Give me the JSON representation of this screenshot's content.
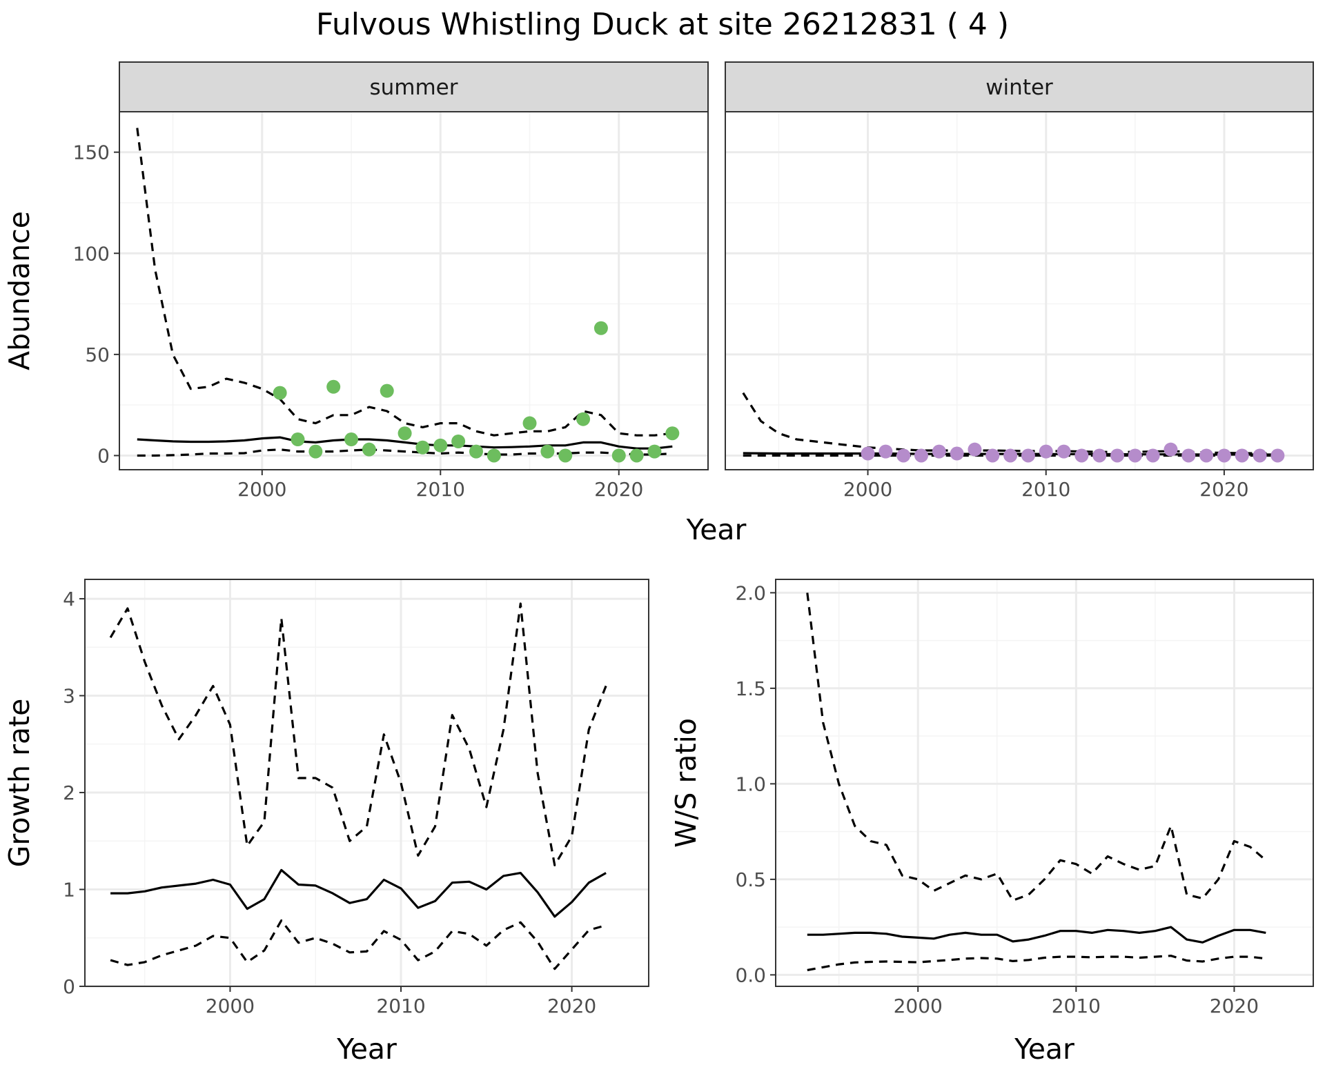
{
  "title": "Fulvous Whistling Duck at site 26212831 ( 4 )",
  "colors": {
    "summer_points": "#6dbd5e",
    "winter_points": "#b58ccb",
    "line": "#000000",
    "grid_major": "#ebebeb",
    "grid_minor": "#f4f4f4",
    "strip_fill": "#d9d9d9"
  },
  "chart_data": [
    {
      "type": "line",
      "panel": "summer",
      "xlabel": "Year",
      "ylabel": "Abundance",
      "xlim": [
        1992,
        2025
      ],
      "ylim": [
        -7,
        170
      ],
      "xticks": [
        2000,
        2010,
        2020
      ],
      "yticks": [
        0,
        50,
        100,
        150
      ],
      "grid": true,
      "series": [
        {
          "role": "median",
          "style": "solid",
          "x": [
            1993,
            1994,
            1995,
            1996,
            1997,
            1998,
            1999,
            2000,
            2001,
            2002,
            2003,
            2004,
            2005,
            2006,
            2007,
            2008,
            2009,
            2010,
            2011,
            2012,
            2013,
            2014,
            2015,
            2016,
            2017,
            2018,
            2019,
            2020,
            2021,
            2022,
            2023
          ],
          "y": [
            8,
            7.5,
            7,
            6.8,
            6.8,
            7,
            7.5,
            8.5,
            9,
            7,
            6.5,
            7.5,
            8,
            8,
            7.5,
            6.5,
            5.5,
            5,
            5,
            4.5,
            4,
            4.2,
            4.5,
            5,
            5,
            6.5,
            6.5,
            4.5,
            3.5,
            3.5,
            4.5
          ]
        },
        {
          "role": "upper",
          "style": "dashed",
          "x": [
            1993,
            1994,
            1995,
            1996,
            1997,
            1998,
            1999,
            2000,
            2001,
            2002,
            2003,
            2004,
            2005,
            2006,
            2007,
            2008,
            2009,
            2010,
            2011,
            2012,
            2013,
            2014,
            2015,
            2016,
            2017,
            2018,
            2019,
            2020,
            2021,
            2022,
            2023
          ],
          "y": [
            162,
            92,
            50,
            33,
            34,
            38,
            36,
            33,
            28,
            18,
            16,
            20,
            20,
            24,
            22,
            16,
            14,
            16,
            16,
            12,
            10,
            11,
            12,
            12,
            14,
            22,
            20,
            11,
            10,
            10,
            11
          ]
        },
        {
          "role": "lower",
          "style": "dashed",
          "x": [
            1993,
            1994,
            1995,
            1996,
            1997,
            1998,
            1999,
            2000,
            2001,
            2002,
            2003,
            2004,
            2005,
            2006,
            2007,
            2008,
            2009,
            2010,
            2011,
            2012,
            2013,
            2014,
            2015,
            2016,
            2017,
            2018,
            2019,
            2020,
            2021,
            2022,
            2023
          ],
          "y": [
            0,
            0,
            0.2,
            0.5,
            1,
            1,
            1.2,
            2.5,
            3,
            2,
            2,
            2,
            2.5,
            3,
            2.5,
            2,
            1.5,
            1,
            1.5,
            1,
            0.5,
            0.5,
            1,
            1,
            1,
            1.5,
            1.5,
            1,
            0.5,
            0.5,
            1
          ]
        }
      ],
      "observed": {
        "x": [
          2001,
          2002,
          2003,
          2004,
          2005,
          2006,
          2007,
          2008,
          2009,
          2010,
          2011,
          2012,
          2013,
          2015,
          2016,
          2017,
          2018,
          2019,
          2020,
          2021,
          2022,
          2023
        ],
        "y": [
          31,
          8,
          2,
          34,
          8,
          3,
          32,
          11,
          4,
          5,
          7,
          2,
          0,
          16,
          2,
          0,
          18,
          63,
          0,
          0,
          2,
          11
        ]
      }
    },
    {
      "type": "line",
      "panel": "winter",
      "xlabel": "Year",
      "ylabel": "Abundance",
      "xlim": [
        1992,
        2025
      ],
      "ylim": [
        -7,
        170
      ],
      "xticks": [
        2000,
        2010,
        2020
      ],
      "yticks": [
        0,
        50,
        100,
        150
      ],
      "grid": true,
      "series": [
        {
          "role": "median",
          "style": "solid",
          "x": [
            1993,
            1995,
            1997,
            1999,
            2001,
            2003,
            2005,
            2007,
            2009,
            2011,
            2013,
            2015,
            2017,
            2019,
            2021,
            2023
          ],
          "y": [
            1.2,
            1,
            1,
            1,
            1,
            0.8,
            0.8,
            0.8,
            0.8,
            0.7,
            0.7,
            0.6,
            0.6,
            0.5,
            0.5,
            0.5
          ]
        },
        {
          "role": "upper",
          "style": "dashed",
          "x": [
            1993,
            1994,
            1995,
            1996,
            1997,
            1998,
            1999,
            2000,
            2001,
            2002,
            2003,
            2005,
            2007,
            2009,
            2011,
            2013,
            2015,
            2017,
            2019,
            2021,
            2023
          ],
          "y": [
            31,
            17,
            11,
            8,
            7,
            6,
            5,
            4,
            3.5,
            3,
            2.5,
            2.5,
            2.5,
            2.2,
            2.2,
            1.8,
            1.8,
            2.2,
            1.5,
            1.2,
            1
          ]
        },
        {
          "role": "lower",
          "style": "dashed",
          "x": [
            1993,
            1995,
            1997,
            1999,
            2001,
            2003,
            2005,
            2007,
            2009,
            2011,
            2013,
            2015,
            2017,
            2019,
            2021,
            2023
          ],
          "y": [
            0,
            0,
            0,
            0,
            0,
            0,
            0,
            0,
            0,
            0,
            0,
            0,
            0,
            0,
            0,
            0
          ]
        }
      ],
      "observed": {
        "x": [
          2000,
          2001,
          2002,
          2003,
          2004,
          2005,
          2006,
          2007,
          2008,
          2009,
          2010,
          2011,
          2012,
          2013,
          2014,
          2015,
          2016,
          2017,
          2018,
          2019,
          2020,
          2021,
          2022,
          2023
        ],
        "y": [
          1,
          2,
          0,
          0,
          2,
          1,
          3,
          0,
          0,
          0,
          2,
          2,
          0,
          0,
          0,
          0,
          0,
          3,
          0,
          0,
          0,
          0,
          0,
          0
        ]
      }
    },
    {
      "type": "line",
      "xlabel": "Year",
      "ylabel": "Growth rate",
      "xlim": [
        1991.5,
        2024.5
      ],
      "ylim": [
        0,
        4.2
      ],
      "xticks": [
        2000,
        2010,
        2020
      ],
      "yticks": [
        0,
        1,
        2,
        3,
        4
      ],
      "grid": true,
      "series": [
        {
          "role": "median",
          "style": "solid",
          "x": [
            1993,
            1994,
            1995,
            1996,
            1997,
            1998,
            1999,
            2000,
            2001,
            2002,
            2003,
            2004,
            2005,
            2006,
            2007,
            2008,
            2009,
            2010,
            2011,
            2012,
            2013,
            2014,
            2015,
            2016,
            2017,
            2018,
            2019,
            2020,
            2021,
            2022
          ],
          "y": [
            0.96,
            0.96,
            0.98,
            1.02,
            1.04,
            1.06,
            1.1,
            1.05,
            0.8,
            0.9,
            1.2,
            1.05,
            1.04,
            0.96,
            0.86,
            0.9,
            1.1,
            1.01,
            0.81,
            0.88,
            1.07,
            1.08,
            1.0,
            1.14,
            1.17,
            0.97,
            0.72,
            0.87,
            1.07,
            1.17
          ]
        },
        {
          "role": "upper",
          "style": "dashed",
          "x": [
            1993,
            1994,
            1995,
            1996,
            1997,
            1998,
            1999,
            2000,
            2001,
            2002,
            2003,
            2004,
            2005,
            2006,
            2007,
            2008,
            2009,
            2010,
            2011,
            2012,
            2013,
            2014,
            2015,
            2016,
            2017,
            2018,
            2019,
            2020,
            2021,
            2022
          ],
          "y": [
            3.6,
            3.9,
            3.35,
            2.9,
            2.55,
            2.8,
            3.1,
            2.7,
            1.45,
            1.7,
            3.8,
            2.15,
            2.15,
            2.05,
            1.5,
            1.65,
            2.6,
            2.1,
            1.35,
            1.65,
            2.8,
            2.45,
            1.85,
            2.65,
            3.95,
            2.2,
            1.25,
            1.55,
            2.65,
            3.1
          ]
        },
        {
          "role": "lower",
          "style": "dashed",
          "x": [
            1993,
            1994,
            1995,
            1996,
            1997,
            1998,
            1999,
            2000,
            2001,
            2002,
            2003,
            2004,
            2005,
            2006,
            2007,
            2008,
            2009,
            2010,
            2011,
            2012,
            2013,
            2014,
            2015,
            2016,
            2017,
            2018,
            2019,
            2020,
            2021,
            2022
          ],
          "y": [
            0.27,
            0.22,
            0.25,
            0.32,
            0.37,
            0.42,
            0.52,
            0.5,
            0.25,
            0.37,
            0.68,
            0.45,
            0.5,
            0.44,
            0.35,
            0.36,
            0.57,
            0.48,
            0.27,
            0.36,
            0.57,
            0.54,
            0.42,
            0.58,
            0.66,
            0.46,
            0.18,
            0.38,
            0.58,
            0.63
          ]
        }
      ]
    },
    {
      "type": "line",
      "xlabel": "Year",
      "ylabel": "W/S ratio",
      "xlim": [
        1991,
        2025
      ],
      "ylim": [
        -0.06,
        2.07
      ],
      "xticks": [
        2000,
        2010,
        2020
      ],
      "yticks": [
        0.0,
        0.5,
        1.0,
        1.5,
        2.0
      ],
      "ytick_labels": [
        "0.0",
        "0.5",
        "1.0",
        "1.5",
        "2.0"
      ],
      "grid": true,
      "series": [
        {
          "role": "median",
          "style": "solid",
          "x": [
            1993,
            1994,
            1995,
            1996,
            1997,
            1998,
            1999,
            2000,
            2001,
            2002,
            2003,
            2004,
            2005,
            2006,
            2007,
            2008,
            2009,
            2010,
            2011,
            2012,
            2013,
            2014,
            2015,
            2016,
            2017,
            2018,
            2019,
            2020,
            2021,
            2022
          ],
          "y": [
            0.21,
            0.21,
            0.215,
            0.22,
            0.22,
            0.215,
            0.2,
            0.195,
            0.19,
            0.21,
            0.22,
            0.21,
            0.21,
            0.175,
            0.185,
            0.205,
            0.23,
            0.23,
            0.22,
            0.235,
            0.23,
            0.22,
            0.23,
            0.25,
            0.185,
            0.17,
            0.205,
            0.235,
            0.235,
            0.22
          ]
        },
        {
          "role": "upper",
          "style": "dashed",
          "x": [
            1993,
            1994,
            1995,
            1996,
            1997,
            1998,
            1999,
            2000,
            2001,
            2002,
            2003,
            2004,
            2005,
            2006,
            2007,
            2008,
            2009,
            2010,
            2011,
            2012,
            2013,
            2014,
            2015,
            2016,
            2017,
            2018,
            2019,
            2020,
            2021,
            2022
          ],
          "y": [
            2.0,
            1.32,
            1.0,
            0.78,
            0.7,
            0.68,
            0.52,
            0.5,
            0.44,
            0.48,
            0.52,
            0.5,
            0.53,
            0.39,
            0.42,
            0.5,
            0.6,
            0.58,
            0.53,
            0.62,
            0.58,
            0.55,
            0.57,
            0.78,
            0.42,
            0.4,
            0.5,
            0.7,
            0.67,
            0.6
          ]
        },
        {
          "role": "lower",
          "style": "dashed",
          "x": [
            1993,
            1994,
            1995,
            1996,
            1997,
            1998,
            1999,
            2000,
            2001,
            2002,
            2003,
            2004,
            2005,
            2006,
            2007,
            2008,
            2009,
            2010,
            2011,
            2012,
            2013,
            2014,
            2015,
            2016,
            2017,
            2018,
            2019,
            2020,
            2021,
            2022
          ],
          "y": [
            0.025,
            0.04,
            0.055,
            0.065,
            0.068,
            0.07,
            0.068,
            0.066,
            0.072,
            0.078,
            0.085,
            0.088,
            0.085,
            0.072,
            0.078,
            0.09,
            0.095,
            0.095,
            0.092,
            0.095,
            0.095,
            0.09,
            0.095,
            0.1,
            0.075,
            0.07,
            0.085,
            0.095,
            0.095,
            0.085
          ]
        }
      ]
    }
  ]
}
